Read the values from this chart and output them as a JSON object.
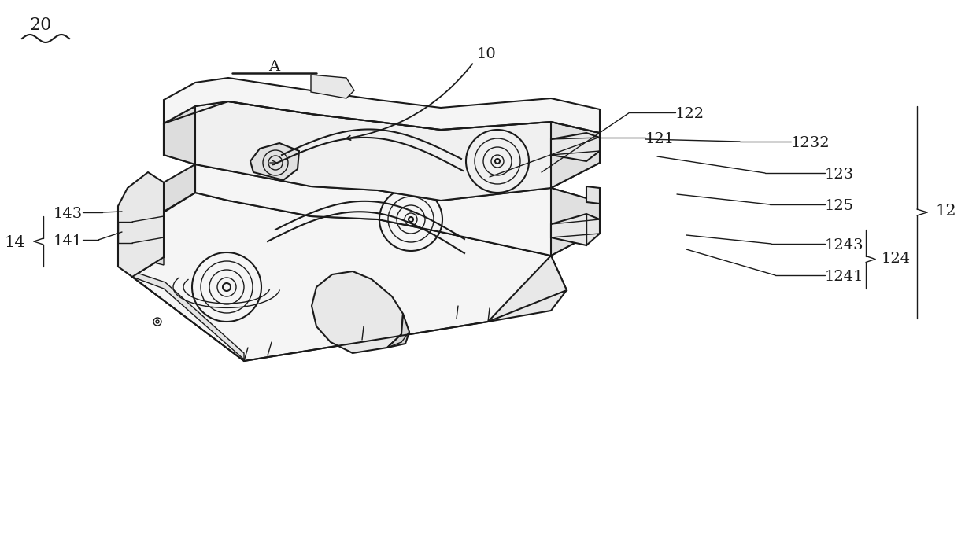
{
  "bg_color": "#ffffff",
  "line_color": "#1a1a1a",
  "figsize": [
    12.4,
    7.07
  ],
  "dpi": 100,
  "label_fontsize": 14
}
